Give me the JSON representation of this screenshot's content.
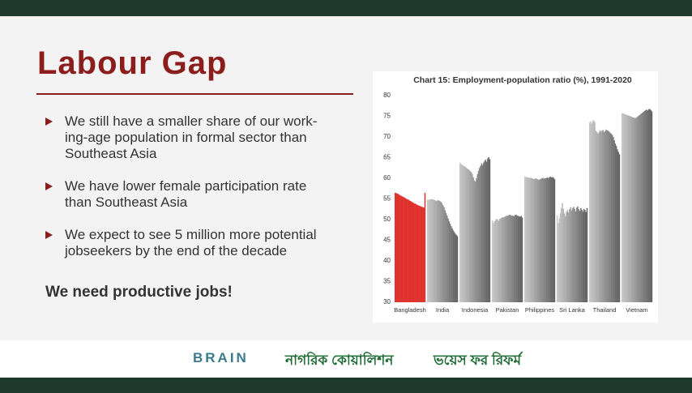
{
  "slide": {
    "title": "Labour Gap",
    "bullets": [
      [
        "We still have a smaller share of our work-",
        "ing-age population in formal sector than",
        "Southeast Asia"
      ],
      [
        "We have lower female participation rate",
        "than Southeast Asia"
      ],
      [
        "We expect to see 5 million more potential",
        "jobseekers by the end of the decade"
      ]
    ],
    "conclusion": "We need productive jobs!",
    "logos": [
      "BRAIN",
      "নাগরিক কোয়ালিশন",
      "ভয়েস ফর রিফর্ম"
    ]
  },
  "chart_data": {
    "type": "bar",
    "title": "Chart 15: Employment-population ratio (%), 1991-2020",
    "categories": [
      "Bangladesh",
      "India",
      "Indonesia",
      "Pakistan",
      "Philippines",
      "Sri Lanka",
      "Thailand",
      "Vietnam"
    ],
    "colors": [
      "#e0302b",
      "#8a8a8a",
      "#8a8a8a",
      "#8a8a8a",
      "#8a8a8a",
      "#8a8a8a",
      "#8a8a8a",
      "#8a8a8a"
    ],
    "values": [
      [
        56.5,
        56.4,
        56.3,
        56.2,
        56.0,
        55.9,
        55.7,
        55.6,
        55.5,
        55.3,
        55.2,
        55.0,
        54.9,
        54.8,
        54.6,
        54.5,
        54.3,
        54.2,
        54.0,
        53.9,
        53.8,
        53.6,
        53.5,
        53.4,
        53.3,
        53.2,
        53.1,
        53.0,
        52.9,
        56.5
      ],
      [
        54.8,
        54.8,
        54.9,
        54.9,
        55.0,
        54.9,
        54.8,
        54.7,
        54.6,
        54.5,
        54.7,
        54.6,
        54.5,
        54.3,
        54.0,
        53.5,
        53.0,
        52.3,
        51.6,
        51.0,
        50.3,
        49.6,
        49.0,
        48.4,
        47.9,
        47.4,
        47.0,
        46.6,
        46.3,
        46.0
      ],
      [
        63.8,
        63.5,
        63.3,
        63.1,
        62.9,
        62.8,
        62.6,
        62.4,
        62.2,
        62.0,
        61.7,
        61.5,
        61.0,
        60.2,
        59.5,
        59.2,
        60.0,
        61.0,
        61.8,
        62.5,
        63.0,
        63.6,
        63.2,
        63.8,
        64.2,
        64.5,
        64.0,
        64.8,
        65.1,
        64.6
      ],
      [
        49.8,
        49.2,
        49.6,
        49.9,
        50.2,
        50.0,
        49.7,
        50.1,
        50.3,
        50.4,
        50.6,
        50.5,
        50.7,
        50.8,
        51.0,
        50.9,
        51.1,
        51.2,
        51.0,
        50.9,
        51.0,
        50.8,
        51.1,
        51.2,
        51.0,
        50.9,
        50.8,
        50.7,
        50.9,
        50.5
      ],
      [
        60.4,
        60.3,
        60.3,
        60.2,
        60.2,
        60.1,
        60.1,
        60.0,
        59.9,
        59.8,
        59.9,
        60.0,
        59.8,
        59.7,
        59.6,
        59.8,
        59.9,
        60.0,
        60.1,
        59.9,
        60.0,
        60.1,
        60.2,
        60.0,
        60.3,
        60.4,
        60.2,
        60.3,
        60.1,
        59.8
      ],
      [
        51.0,
        49.2,
        50.3,
        51.5,
        52.8,
        54.0,
        52.6,
        51.5,
        50.8,
        51.9,
        52.3,
        51.7,
        52.5,
        53.0,
        52.2,
        52.8,
        53.1,
        52.6,
        52.0,
        52.9,
        53.2,
        52.5,
        52.1,
        52.8,
        52.4,
        51.9,
        52.6,
        52.3,
        51.8,
        52.8
      ],
      [
        73.5,
        73.8,
        73.2,
        73.9,
        74.0,
        73.6,
        71.5,
        71.2,
        70.8,
        71.1,
        71.6,
        71.3,
        71.5,
        71.7,
        71.2,
        71.4,
        71.8,
        71.6,
        71.5,
        71.3,
        71.0,
        70.8,
        70.5,
        70.0,
        69.2,
        68.4,
        67.8,
        67.0,
        66.4,
        65.8
      ],
      [
        75.8,
        75.7,
        75.6,
        75.5,
        75.4,
        75.3,
        75.2,
        75.1,
        75.0,
        74.9,
        74.8,
        74.7,
        74.6,
        74.6,
        74.7,
        74.9,
        75.1,
        75.3,
        75.5,
        75.7,
        75.9,
        76.1,
        76.3,
        76.5,
        76.6,
        76.4,
        76.7,
        76.8,
        76.5,
        76.2
      ]
    ],
    "ylim": [
      30,
      80
    ],
    "yticks": [
      30,
      35,
      40,
      45,
      50,
      55,
      60,
      65,
      70,
      75,
      80
    ],
    "grid": false
  }
}
